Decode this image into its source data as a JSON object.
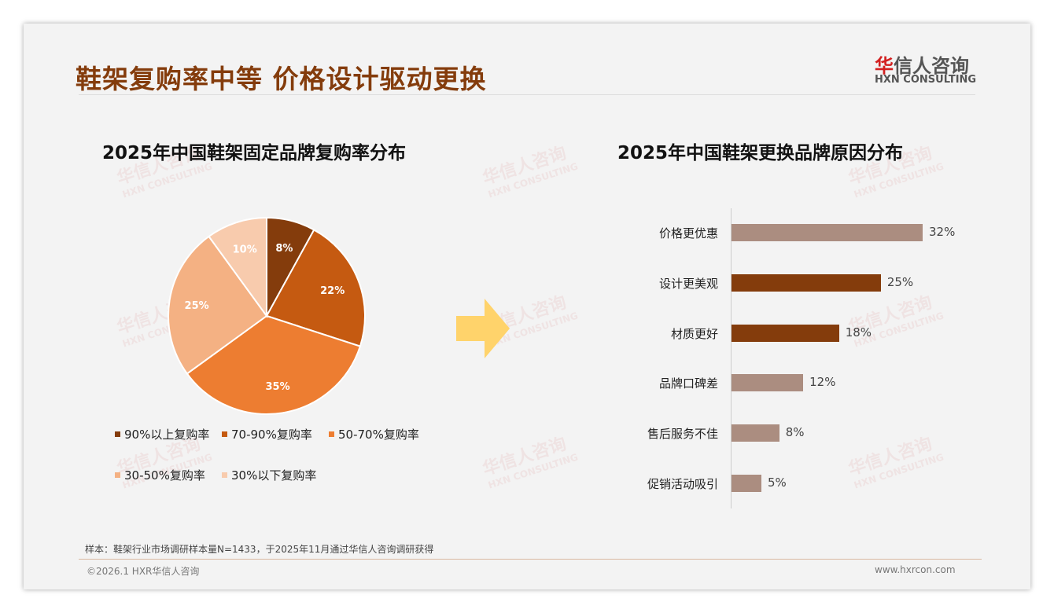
{
  "header": {
    "title": "鞋架复购率中等 价格设计驱动更换",
    "logo_cn_accent": "华",
    "logo_cn_rest": "信人咨询",
    "logo_en": "HXN CONSULTING"
  },
  "watermark": {
    "cn": "华信人咨询",
    "en": "HXN CONSULTING"
  },
  "chart_data": [
    {
      "type": "pie",
      "title": "2025年中国鞋架固定品牌复购率分布",
      "categories": [
        "90%以上复购率",
        "70-90%复购率",
        "50-70%复购率",
        "30-50%复购率",
        "30%以下复购率"
      ],
      "values": [
        8,
        22,
        35,
        25,
        10
      ],
      "labels": [
        "8%",
        "22%",
        "35%",
        "25%",
        "10%"
      ],
      "colors": [
        "#843c0c",
        "#c55a11",
        "#ed7d31",
        "#f4b183",
        "#f8cbad"
      ],
      "legend": "bottom"
    },
    {
      "type": "bar",
      "orientation": "horizontal",
      "title": "2025年中国鞋架更换品牌原因分布",
      "categories": [
        "价格更优惠",
        "设计更美观",
        "材质更好",
        "品牌口碑差",
        "售后服务不佳",
        "促销活动吸引"
      ],
      "values": [
        32,
        25,
        18,
        12,
        8,
        5
      ],
      "labels": [
        "32%",
        "25%",
        "18%",
        "12%",
        "8%",
        "5%"
      ],
      "colors": [
        "#ab8d80",
        "#843c0c",
        "#843c0c",
        "#ab8d80",
        "#ab8d80",
        "#ab8d80"
      ],
      "xlim": [
        0,
        32
      ]
    }
  ],
  "footer": {
    "note": "样本：鞋架行业市场调研样本量N=1433，于2025年11月通过华信人咨询调研获得",
    "copyright": "©2026.1 HXR华信人咨询",
    "url": "www.hxrcon.com"
  }
}
